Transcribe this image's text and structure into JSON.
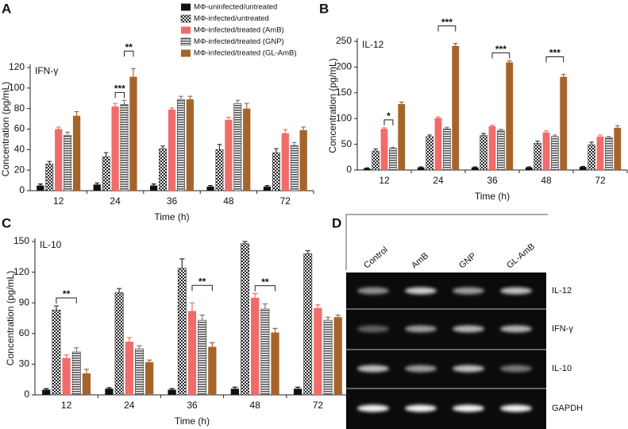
{
  "chart_data": [
    {
      "type": "bar",
      "panel": "A",
      "subtitle": "IFN-γ",
      "xlabel": "Time (h)",
      "ylabel": "Concentration (pg/mL)",
      "categories": [
        "12",
        "24",
        "36",
        "48",
        "72"
      ],
      "ylim": [
        0,
        120
      ],
      "yticks": [
        0,
        20,
        40,
        60,
        80,
        100,
        120
      ],
      "series": [
        {
          "name": "MΦ-uninfected/untreated",
          "color": "#111111",
          "fill": "solid",
          "values": [
            5,
            6,
            5,
            4,
            4
          ],
          "errors": [
            1.5,
            1.5,
            1.5,
            1,
            1
          ]
        },
        {
          "name": "MΦ-infected/untreated",
          "color": "#333333",
          "fill": "checker",
          "values": [
            26,
            33,
            41,
            40,
            37
          ],
          "errors": [
            2.5,
            4,
            2.5,
            5,
            4
          ]
        },
        {
          "name": "MΦ-infected/treated (AmB)",
          "color": "#f26b6b",
          "fill": "solid",
          "values": [
            60,
            82,
            79,
            69,
            56
          ],
          "errors": [
            2,
            3,
            1.5,
            2.5,
            3.5
          ]
        },
        {
          "name": "MΦ-infected/treated (GNP)",
          "color": "#777777",
          "fill": "stripes",
          "values": [
            54,
            84,
            89,
            85,
            44
          ],
          "errors": [
            3,
            4,
            3,
            3,
            3
          ]
        },
        {
          "name": "MΦ-infected/treated (GL-AmB)",
          "color": "#a5652a",
          "fill": "solid",
          "values": [
            73,
            111,
            89,
            80,
            59
          ],
          "errors": [
            4,
            8,
            3,
            5,
            3
          ]
        }
      ],
      "annotations": [
        {
          "text": "***",
          "category": 1,
          "from": 2,
          "to": 3
        },
        {
          "text": "**",
          "category": 1,
          "from": 3,
          "to": 4
        }
      ]
    },
    {
      "type": "bar",
      "panel": "B",
      "subtitle": "IL-12",
      "xlabel": "Time (h)",
      "ylabel": "Concentration (pg/mL)",
      "categories": [
        "12",
        "24",
        "36",
        "48",
        "72"
      ],
      "ylim": [
        0,
        250
      ],
      "yticks": [
        0,
        50,
        100,
        150,
        200,
        250
      ],
      "series": [
        {
          "color": "#111111",
          "fill": "solid",
          "values": [
            3,
            5,
            5,
            5,
            6
          ],
          "errors": [
            1,
            1,
            1,
            1,
            1
          ]
        },
        {
          "color": "#333333",
          "fill": "checker",
          "values": [
            37,
            65,
            67,
            52,
            49
          ],
          "errors": [
            4,
            3,
            4,
            4,
            5
          ]
        },
        {
          "color": "#f26b6b",
          "fill": "solid",
          "values": [
            80,
            101,
            85,
            73,
            65
          ],
          "errors": [
            2,
            2,
            2,
            3,
            3
          ]
        },
        {
          "color": "#777777",
          "fill": "stripes",
          "values": [
            42,
            80,
            77,
            65,
            63
          ],
          "errors": [
            2,
            3,
            2,
            3,
            2
          ]
        },
        {
          "color": "#a5652a",
          "fill": "solid",
          "values": [
            128,
            241,
            209,
            181,
            82
          ],
          "errors": [
            4,
            5,
            3,
            5,
            4
          ]
        }
      ],
      "annotations": [
        {
          "text": "*",
          "category": 0,
          "from": 2,
          "to": 3
        },
        {
          "text": "***",
          "category": 1,
          "from": 2,
          "to": 4
        },
        {
          "text": "***",
          "category": 2,
          "from": 2,
          "to": 4
        },
        {
          "text": "***",
          "category": 3,
          "from": 2,
          "to": 4
        }
      ]
    },
    {
      "type": "bar",
      "panel": "C",
      "subtitle": "IL-10",
      "xlabel": "Time (h)",
      "ylabel": "Concentration (pg/mL)",
      "categories": [
        "12",
        "24",
        "36",
        "48",
        "72"
      ],
      "ylim": [
        0,
        150
      ],
      "yticks": [
        0,
        30,
        60,
        90,
        120,
        150
      ],
      "series": [
        {
          "color": "#111111",
          "fill": "solid",
          "values": [
            5,
            6,
            5,
            6,
            6
          ],
          "errors": [
            1,
            1,
            1,
            1.5,
            1.5
          ]
        },
        {
          "color": "#333333",
          "fill": "checker",
          "values": [
            83,
            100,
            124,
            148,
            138
          ],
          "errors": [
            4,
            4,
            9,
            2,
            3
          ]
        },
        {
          "color": "#f26b6b",
          "fill": "solid",
          "values": [
            36,
            52,
            82,
            95,
            85
          ],
          "errors": [
            3,
            4,
            8,
            4,
            3
          ]
        },
        {
          "color": "#777777",
          "fill": "stripes",
          "values": [
            42,
            45,
            73,
            84,
            73
          ],
          "errors": [
            4,
            3,
            5,
            5,
            3
          ]
        },
        {
          "color": "#a5652a",
          "fill": "solid",
          "values": [
            21,
            32,
            47,
            61,
            76
          ],
          "errors": [
            4,
            2,
            4,
            4,
            2
          ]
        }
      ],
      "annotations": [
        {
          "text": "**",
          "category": 0,
          "from": 1,
          "to": 3
        },
        {
          "text": "**",
          "category": 2,
          "from": 2,
          "to": 4
        },
        {
          "text": "**",
          "category": 3,
          "from": 2,
          "to": 4
        }
      ]
    }
  ],
  "gel": {
    "panel": "D",
    "lanes": [
      "Control",
      "AmB",
      "GNP",
      "GL-AmB"
    ],
    "rows": [
      "IL-12",
      "IFN-γ",
      "IL-10",
      "GAPDH"
    ]
  }
}
